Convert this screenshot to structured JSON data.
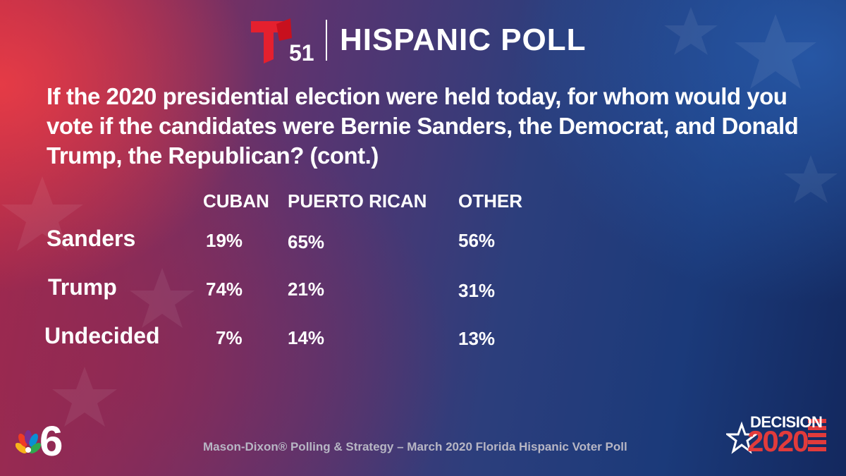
{
  "header": {
    "logo_number": "51",
    "title": "HISPANIC POLL"
  },
  "question": "If the 2020 presidential election were held today, for whom would you vote if the candidates were Bernie Sanders, the Democrat, and Donald Trump, the Republican? (cont.)",
  "table": {
    "columns": [
      "CUBAN",
      "PUERTO RICAN",
      "OTHER"
    ],
    "rows": [
      {
        "label": "Sanders",
        "values": [
          "19%",
          "65%",
          "56%"
        ]
      },
      {
        "label": "Trump",
        "values": [
          "74%",
          "21%",
          "31%"
        ]
      },
      {
        "label": "Undecided",
        "values": [
          "7%",
          "14%",
          "13%"
        ]
      }
    ]
  },
  "footer": {
    "source": "Mason-Dixon® Polling & Strategy – March 2020 Florida Hispanic Voter Poll",
    "channel_number": "6",
    "decision_label": "DECISION",
    "decision_year": "2020"
  },
  "colors": {
    "telemundo_red": "#e4202e",
    "decision_red": "#e23b3b",
    "text": "#ffffff",
    "source_text": "#b7b6c4"
  }
}
